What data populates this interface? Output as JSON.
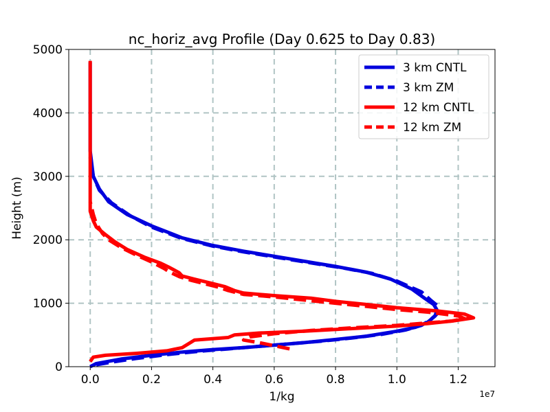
{
  "chart_data": {
    "type": "line",
    "title": "nc_horiz_avg Profile (Day 0.625 to Day 0.83)",
    "xlabel": "1/kg",
    "ylabel": "Height (m)",
    "x_offset_label": "1e7",
    "xlim": [
      -0.07,
      1.32
    ],
    "ylim": [
      0,
      5000
    ],
    "x_ticks": [
      0.0,
      0.2,
      0.4,
      0.6,
      0.8,
      1.0,
      1.2
    ],
    "x_tick_labels": [
      "0.0",
      "0.2",
      "0.4",
      "0.6",
      "0.8",
      "1.0",
      "1.2"
    ],
    "y_ticks": [
      0,
      1000,
      2000,
      3000,
      4000,
      5000
    ],
    "y_tick_labels": [
      "0",
      "1000",
      "2000",
      "3000",
      "4000",
      "5000"
    ],
    "grid": true,
    "legend_position": "top-right",
    "series": [
      {
        "name": "3 km CNTL",
        "color": "#0000dd",
        "dash": "solid",
        "points": [
          [
            0.0,
            0
          ],
          [
            0.02,
            50
          ],
          [
            0.1,
            120
          ],
          [
            0.2,
            180
          ],
          [
            0.3,
            230
          ],
          [
            0.4,
            270
          ],
          [
            0.5,
            300
          ],
          [
            0.6,
            340
          ],
          [
            0.7,
            380
          ],
          [
            0.8,
            430
          ],
          [
            0.9,
            480
          ],
          [
            1.0,
            560
          ],
          [
            1.06,
            620
          ],
          [
            1.1,
            700
          ],
          [
            1.125,
            800
          ],
          [
            1.13,
            900
          ],
          [
            1.12,
            980
          ],
          [
            1.09,
            1080
          ],
          [
            1.05,
            1220
          ],
          [
            0.98,
            1380
          ],
          [
            0.9,
            1490
          ],
          [
            0.8,
            1580
          ],
          [
            0.7,
            1660
          ],
          [
            0.6,
            1740
          ],
          [
            0.5,
            1820
          ],
          [
            0.4,
            1910
          ],
          [
            0.3,
            2030
          ],
          [
            0.2,
            2220
          ],
          [
            0.12,
            2400
          ],
          [
            0.06,
            2600
          ],
          [
            0.03,
            2800
          ],
          [
            0.01,
            3000
          ],
          [
            0.0,
            3400
          ],
          [
            0.0,
            3800
          ],
          [
            0.0,
            4300
          ],
          [
            0.0,
            4800
          ]
        ]
      },
      {
        "name": "3 km ZM",
        "color": "#0000dd",
        "dash": "dashed",
        "points": [
          [
            0.02,
            30
          ],
          [
            0.08,
            80
          ],
          [
            0.15,
            130
          ],
          [
            0.25,
            190
          ],
          [
            0.35,
            240
          ],
          [
            0.45,
            280
          ],
          [
            0.55,
            320
          ],
          [
            0.65,
            360
          ],
          [
            0.75,
            400
          ],
          [
            0.85,
            450
          ],
          [
            0.95,
            510
          ],
          [
            1.03,
            580
          ],
          [
            1.08,
            650
          ],
          [
            1.11,
            740
          ],
          [
            1.135,
            850
          ],
          [
            1.135,
            950
          ],
          [
            1.11,
            1050
          ],
          [
            1.08,
            1180
          ],
          [
            1.0,
            1350
          ],
          [
            0.92,
            1470
          ],
          [
            0.82,
            1560
          ],
          [
            0.7,
            1650
          ],
          [
            0.6,
            1730
          ],
          [
            0.5,
            1810
          ],
          [
            0.4,
            1900
          ],
          [
            0.3,
            2020
          ],
          [
            0.2,
            2200
          ],
          [
            0.13,
            2380
          ],
          [
            0.07,
            2580
          ],
          [
            0.03,
            2780
          ],
          [
            0.01,
            3000
          ],
          [
            0.0,
            3300
          ]
        ]
      },
      {
        "name": "12 km CNTL",
        "color": "#ff0000",
        "dash": "solid",
        "points": [
          [
            0.0,
            80
          ],
          [
            0.01,
            150
          ],
          [
            0.05,
            180
          ],
          [
            0.15,
            210
          ],
          [
            0.25,
            250
          ],
          [
            0.3,
            300
          ],
          [
            0.32,
            360
          ],
          [
            0.34,
            420
          ],
          [
            0.45,
            460
          ],
          [
            0.47,
            500
          ],
          [
            0.55,
            530
          ],
          [
            0.7,
            560
          ],
          [
            0.85,
            600
          ],
          [
            1.0,
            640
          ],
          [
            1.1,
            680
          ],
          [
            1.18,
            720
          ],
          [
            1.25,
            770
          ],
          [
            1.22,
            830
          ],
          [
            1.13,
            880
          ],
          [
            1.0,
            930
          ],
          [
            0.9,
            980
          ],
          [
            0.8,
            1030
          ],
          [
            0.72,
            1080
          ],
          [
            0.6,
            1120
          ],
          [
            0.5,
            1160
          ],
          [
            0.47,
            1200
          ],
          [
            0.44,
            1260
          ],
          [
            0.4,
            1310
          ],
          [
            0.34,
            1380
          ],
          [
            0.3,
            1430
          ],
          [
            0.29,
            1480
          ],
          [
            0.26,
            1560
          ],
          [
            0.23,
            1630
          ],
          [
            0.18,
            1720
          ],
          [
            0.12,
            1850
          ],
          [
            0.08,
            1970
          ],
          [
            0.05,
            2080
          ],
          [
            0.02,
            2200
          ],
          [
            0.01,
            2300
          ],
          [
            0.0,
            2450
          ],
          [
            0.0,
            3000
          ],
          [
            0.0,
            3500
          ],
          [
            0.0,
            4000
          ],
          [
            0.0,
            4820
          ]
        ]
      },
      {
        "name": "12 km ZM",
        "color": "#ff0000",
        "dash": "dashed",
        "points": [
          [
            0.65,
            280
          ],
          [
            0.6,
            330
          ],
          [
            0.55,
            380
          ],
          [
            0.5,
            420
          ],
          [
            0.52,
            470
          ],
          [
            0.6,
            520
          ],
          [
            0.72,
            570
          ],
          [
            0.85,
            610
          ],
          [
            1.0,
            650
          ],
          [
            1.1,
            690
          ],
          [
            1.18,
            720
          ],
          [
            1.22,
            760
          ],
          [
            1.2,
            800
          ],
          [
            1.1,
            860
          ],
          [
            1.0,
            900
          ],
          [
            0.9,
            950
          ],
          [
            0.8,
            1000
          ],
          [
            0.7,
            1050
          ],
          [
            0.6,
            1100
          ],
          [
            0.5,
            1140
          ],
          [
            0.45,
            1200
          ],
          [
            0.42,
            1250
          ],
          [
            0.38,
            1300
          ],
          [
            0.33,
            1360
          ],
          [
            0.29,
            1420
          ],
          [
            0.26,
            1490
          ],
          [
            0.24,
            1550
          ],
          [
            0.2,
            1650
          ],
          [
            0.15,
            1760
          ],
          [
            0.1,
            1880
          ],
          [
            0.06,
            2000
          ],
          [
            0.04,
            2100
          ],
          [
            0.02,
            2250
          ],
          [
            0.01,
            2400
          ],
          [
            0.0,
            2600
          ]
        ]
      }
    ]
  }
}
